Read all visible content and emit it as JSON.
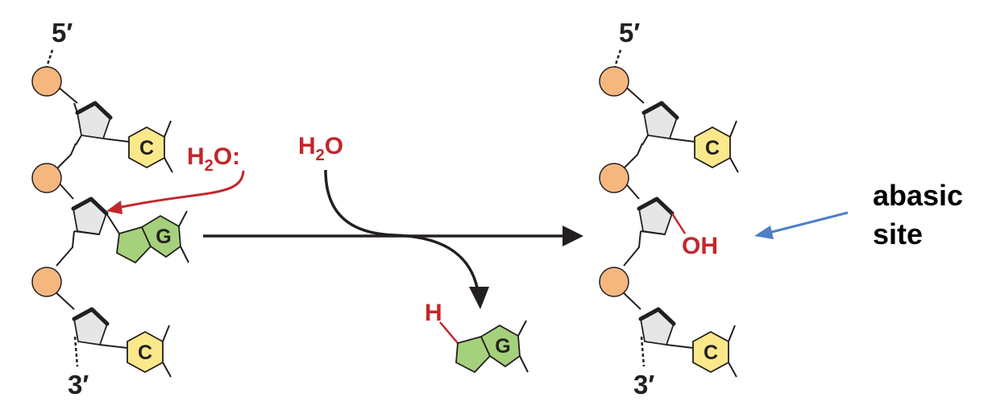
{
  "labels": {
    "five_prime_left": "5′",
    "three_prime_left": "3′",
    "five_prime_right": "5′",
    "three_prime_right": "3′",
    "water_attack": "H",
    "water_attack_sub": "2",
    "water_attack_tail": "O:",
    "water_top": "H",
    "water_top_sub": "2",
    "water_top_tail": "O",
    "hydroxyl": "OH",
    "hydrogen": "H",
    "abasic_line1": "abasic",
    "abasic_line2": "site"
  },
  "bases": {
    "left_top": "C",
    "left_middle": "G",
    "left_bottom": "C",
    "free_base": "G",
    "right_top": "C",
    "right_bottom": "C"
  },
  "colors": {
    "phosphate": "#f6b77f",
    "sugar": "#e6e6e6",
    "cytosine": "#fbe88b",
    "guanine": "#a6d17c",
    "red": "#c1272d",
    "blue_arrow": "#4f7fc6",
    "black": "#231f20"
  }
}
